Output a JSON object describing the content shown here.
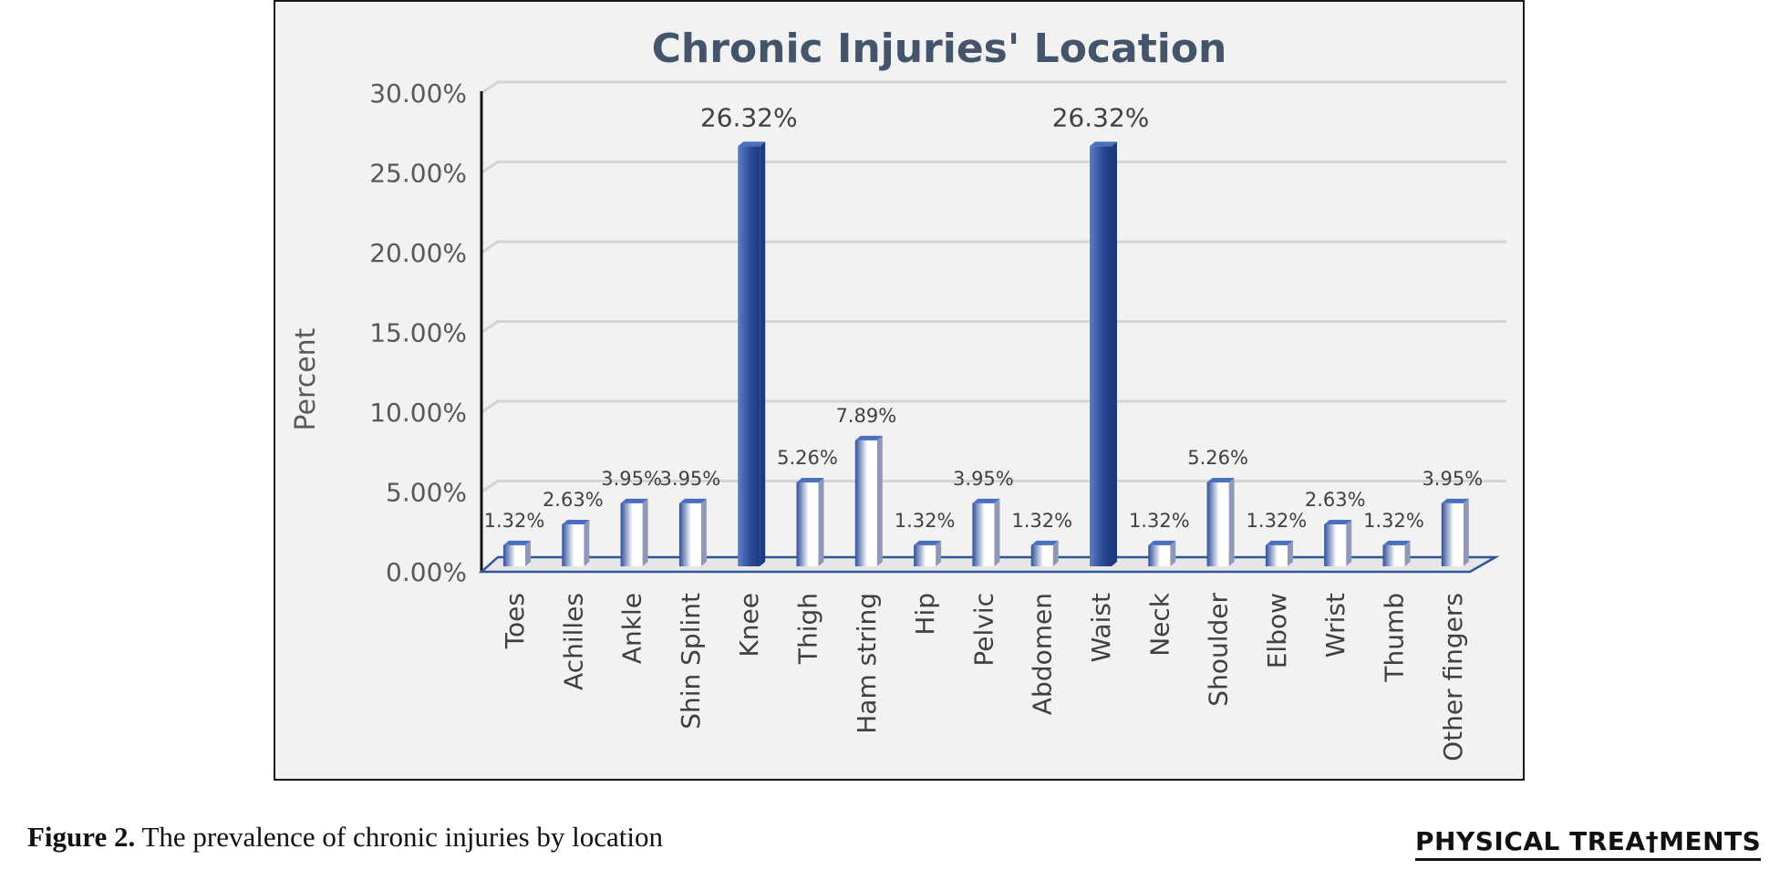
{
  "chart_data": {
    "type": "bar",
    "title": "Chronic Injuries' Location",
    "xlabel": "",
    "ylabel": "Percent",
    "ylim": [
      0,
      30
    ],
    "y_ticks": [
      "0.00%",
      "5.00%",
      "10.00%",
      "15.00%",
      "20.00%",
      "25.00%",
      "30.00%"
    ],
    "y_tick_values": [
      0,
      5,
      10,
      15,
      20,
      25,
      30
    ],
    "grid": true,
    "categories": [
      "Toes",
      "Achilles",
      "Ankle",
      "Shin Splint",
      "Knee",
      "Thigh",
      "Ham string",
      "Hip",
      "Pelvic",
      "Abdomen",
      "Waist",
      "Neck",
      "Shoulder",
      "Elbow",
      "Wrist",
      "Thumb",
      "Other fingers"
    ],
    "values": [
      1.32,
      2.63,
      3.95,
      3.95,
      26.32,
      5.26,
      7.89,
      1.32,
      3.95,
      1.32,
      26.32,
      1.32,
      5.26,
      1.32,
      2.63,
      1.32,
      3.95
    ],
    "data_labels": [
      "1.32%",
      "2.63%",
      "3.95%",
      "3.95%",
      "26.32%",
      "5.26%",
      "7.89%",
      "1.32%",
      "3.95%",
      "1.32%",
      "26.32%",
      "1.32%",
      "5.26%",
      "1.32%",
      "2.63%",
      "1.32%",
      "3.95%"
    ],
    "colors": {
      "bar_dark": "#2f4f9a",
      "bar_light": "#ffffff",
      "bar_top": "#4a6fbf",
      "bar_side": "#7a8ab0",
      "grid": "#d4d4d4",
      "axis_floor": "#2f5597",
      "title": "#44546a"
    }
  },
  "caption": {
    "label": "Figure 2.",
    "text": " The prevalence of chronic injuries by location"
  },
  "logo": {
    "text": "PHYSICAL TREA†MENTS"
  }
}
